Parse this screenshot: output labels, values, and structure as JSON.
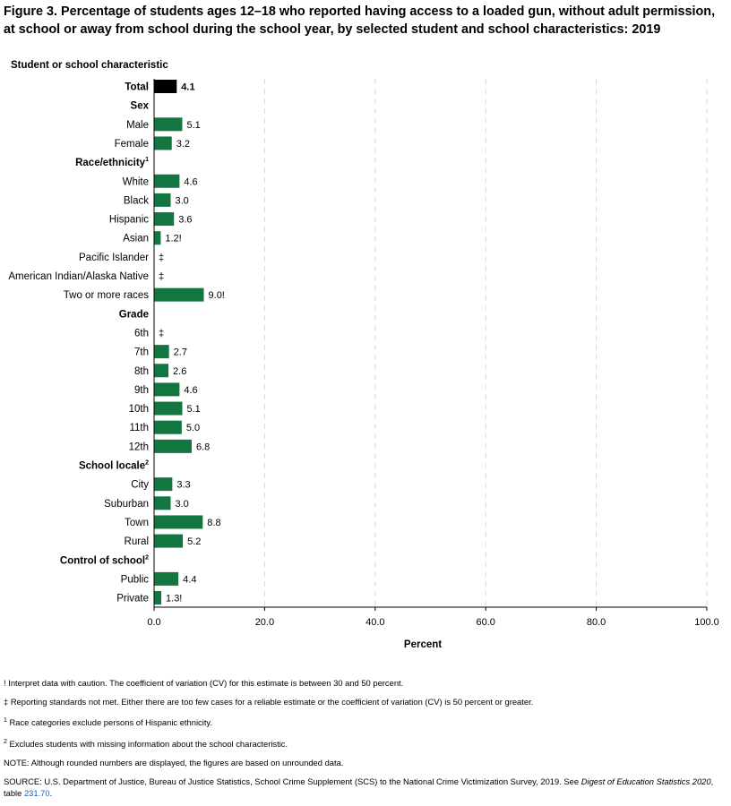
{
  "title": "Figure 3. Percentage of students ages 12–18 who reported having access to a loaded gun, without adult permission, at school or away from school during the school year, by selected student and school characteristics: 2019",
  "chart_data": {
    "type": "bar",
    "orientation": "horizontal",
    "category_axis_title": "Student or school characteristic",
    "xlabel": "Percent",
    "xlim": [
      0,
      100
    ],
    "x_ticks": [
      "0.0",
      "20.0",
      "40.0",
      "60.0",
      "80.0",
      "100.0"
    ],
    "grid": "vertical dashed",
    "colors": {
      "total": "#000000",
      "bar": "#137540",
      "grid": "#d9d9d9"
    },
    "rows": [
      {
        "kind": "bar",
        "label": "Total",
        "value": 4.1,
        "display": "4.1",
        "bold": true,
        "total": true
      },
      {
        "kind": "header",
        "label": "Sex"
      },
      {
        "kind": "bar",
        "label": "Male",
        "value": 5.1,
        "display": "5.1"
      },
      {
        "kind": "bar",
        "label": "Female",
        "value": 3.2,
        "display": "3.2"
      },
      {
        "kind": "header",
        "label": "Race/ethnicity",
        "sup": "1"
      },
      {
        "kind": "bar",
        "label": "White",
        "value": 4.6,
        "display": "4.6"
      },
      {
        "kind": "bar",
        "label": "Black",
        "value": 3.0,
        "display": "3.0"
      },
      {
        "kind": "bar",
        "label": "Hispanic",
        "value": 3.6,
        "display": "3.6"
      },
      {
        "kind": "bar",
        "label": "Asian",
        "value": 1.2,
        "display": "1.2!"
      },
      {
        "kind": "bar",
        "label": "Pacific Islander",
        "value": null,
        "display": "‡"
      },
      {
        "kind": "bar",
        "label": "American Indian/Alaska Native",
        "value": null,
        "display": "‡"
      },
      {
        "kind": "bar",
        "label": "Two or more races",
        "value": 9.0,
        "display": "9.0!"
      },
      {
        "kind": "header",
        "label": "Grade"
      },
      {
        "kind": "bar",
        "label": "6th",
        "value": null,
        "display": "‡"
      },
      {
        "kind": "bar",
        "label": "7th",
        "value": 2.7,
        "display": "2.7"
      },
      {
        "kind": "bar",
        "label": "8th",
        "value": 2.6,
        "display": "2.6"
      },
      {
        "kind": "bar",
        "label": "9th",
        "value": 4.6,
        "display": "4.6"
      },
      {
        "kind": "bar",
        "label": "10th",
        "value": 5.1,
        "display": "5.1"
      },
      {
        "kind": "bar",
        "label": "11th",
        "value": 5.0,
        "display": "5.0"
      },
      {
        "kind": "bar",
        "label": "12th",
        "value": 6.8,
        "display": "6.8"
      },
      {
        "kind": "header",
        "label": "School locale",
        "sup": "2"
      },
      {
        "kind": "bar",
        "label": "City",
        "value": 3.3,
        "display": "3.3"
      },
      {
        "kind": "bar",
        "label": "Suburban",
        "value": 3.0,
        "display": "3.0"
      },
      {
        "kind": "bar",
        "label": "Town",
        "value": 8.8,
        "display": "8.8"
      },
      {
        "kind": "bar",
        "label": "Rural",
        "value": 5.2,
        "display": "5.2"
      },
      {
        "kind": "header",
        "label": "Control of school",
        "sup": "2"
      },
      {
        "kind": "bar",
        "label": "Public",
        "value": 4.4,
        "display": "4.4"
      },
      {
        "kind": "bar",
        "label": "Private",
        "value": 1.3,
        "display": "1.3!"
      }
    ]
  },
  "notes": {
    "caution": "! Interpret data with caution. The coefficient of variation (CV) for this estimate is between 30 and 50 percent.",
    "not_met": "‡ Reporting standards not met. Either there are too few cases for a reliable estimate or the coefficient of variation (CV) is 50 percent or greater.",
    "fn1_mark": "1",
    "fn1": " Race categories exclude persons of Hispanic ethnicity.",
    "fn2_mark": "2",
    "fn2": " Excludes students with missing information about the school characteristic.",
    "note": "NOTE: Although rounded numbers are displayed, the figures are based on unrounded data.",
    "source_prefix": "SOURCE: U.S. Department of Justice, Bureau of Justice Statistics, School Crime Supplement (SCS) to the National Crime Victimization Survey, 2019. See ",
    "source_pub": "Digest of Education Statistics 2020",
    "source_mid": ", table ",
    "source_link": "231.70",
    "source_end": "."
  }
}
